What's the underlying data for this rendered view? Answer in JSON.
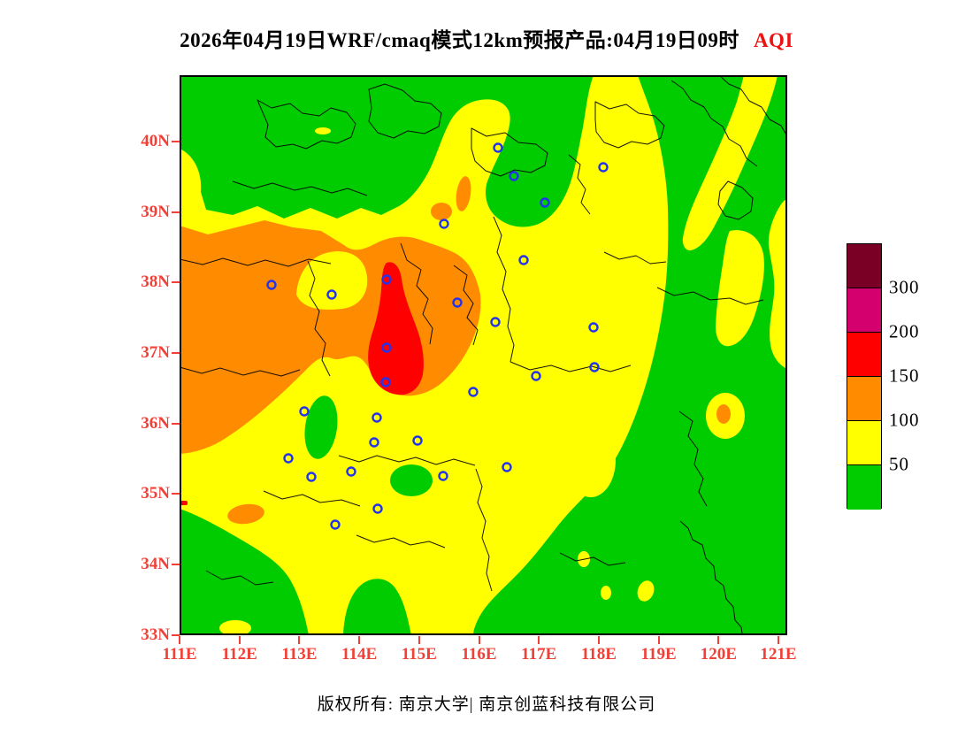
{
  "title": {
    "prefix": "2026年04月19日WRF/cmaq模式12km预报产品:04月19日09时",
    "variable": "AQI"
  },
  "footer": {
    "copyright": "版权所有: 南京大学| 南京创蓝科技有限公司"
  },
  "map": {
    "x_ticks": [
      "111E",
      "112E",
      "113E",
      "114E",
      "115E",
      "116E",
      "117E",
      "118E",
      "119E",
      "120E",
      "121E"
    ],
    "y_ticks": [
      "40N",
      "39N",
      "38N",
      "37N",
      "36N",
      "35N",
      "34N",
      "33N"
    ],
    "city_markers": [
      [
        360,
        82
      ],
      [
        378,
        114
      ],
      [
        479,
        104
      ],
      [
        413,
        144
      ],
      [
        299,
        168
      ],
      [
        104,
        237
      ],
      [
        172,
        248
      ],
      [
        234,
        231
      ],
      [
        314,
        257
      ],
      [
        389,
        209
      ],
      [
        234,
        308
      ],
      [
        357,
        279
      ],
      [
        468,
        285
      ],
      [
        233,
        347
      ],
      [
        332,
        358
      ],
      [
        141,
        380
      ],
      [
        223,
        387
      ],
      [
        220,
        415
      ],
      [
        269,
        413
      ],
      [
        298,
        453
      ],
      [
        123,
        433
      ],
      [
        149,
        454
      ],
      [
        194,
        448
      ],
      [
        224,
        490
      ],
      [
        176,
        508
      ],
      [
        370,
        443
      ],
      [
        403,
        340
      ],
      [
        469,
        330
      ]
    ]
  },
  "colorbar": {
    "labels": [
      "300",
      "200",
      "150",
      "100",
      "50"
    ],
    "segments": [
      {
        "name": "maroon",
        "color": "#7a0026",
        "range": ">300"
      },
      {
        "name": "magenta",
        "color": "#d4006e",
        "range": "200-300"
      },
      {
        "name": "red",
        "color": "#ff0000",
        "range": "150-200"
      },
      {
        "name": "orange",
        "color": "#ff8c00",
        "range": "100-150"
      },
      {
        "name": "yellow",
        "color": "#ffff00",
        "range": "50-100"
      },
      {
        "name": "green",
        "color": "#00cc00",
        "range": "<50"
      }
    ]
  },
  "colors": {
    "axis_label": "#f04138",
    "tick": "#f04138",
    "title_highlight": "#ee1111",
    "marker_blue": "#2233ee",
    "boundary_line": "#000000",
    "map_border": "#000000"
  },
  "chart_data": {
    "type": "heatmap",
    "title": "2026年04月19日WRF/cmaq模式12km预报产品:04月19日09时 AQI",
    "variable": "AQI",
    "model": "WRF/cmaq",
    "resolution": "12km",
    "run_date": "2026年04月19日",
    "valid_time": "04月19日09时",
    "x_axis": {
      "label": "longitude",
      "ticks": [
        "111E",
        "112E",
        "113E",
        "114E",
        "115E",
        "116E",
        "117E",
        "118E",
        "119E",
        "120E",
        "121E"
      ],
      "range": [
        111,
        121.2
      ]
    },
    "y_axis": {
      "label": "latitude",
      "ticks": [
        "33N",
        "34N",
        "35N",
        "36N",
        "37N",
        "38N",
        "39N",
        "40N"
      ],
      "range": [
        33,
        40.9
      ]
    },
    "grid": false,
    "legend": {
      "position": "right",
      "levels": [
        50,
        100,
        150,
        200,
        300
      ]
    },
    "aqi_bands": [
      {
        "range": "<50",
        "color": "#00cc00"
      },
      {
        "range": "50-100",
        "color": "#ffff00"
      },
      {
        "range": "100-150",
        "color": "#ff8c00"
      },
      {
        "range": "150-200",
        "color": "#ff0000"
      },
      {
        "range": "200-300",
        "color": "#d4006e"
      },
      {
        "range": ">300",
        "color": "#7a0026"
      }
    ],
    "regions": [
      {
        "aqi": "150-200",
        "color": "red",
        "location": "core around 114.3-115.1E, 36.5-37.6N (southern Hebei)"
      },
      {
        "aqi": "100-150",
        "color": "orange",
        "location": "large west-central mass 111-113.8E, 36-38.4N wrapping the red core; small spots near 115.6E/38.2N, 115.7E/37.5N, 118.9E/36.2N, 112.1E/34.8N"
      },
      {
        "aqi": "50-100",
        "color": "yellow",
        "location": "broad belt 33.5-38.3N from 111E to ~117.5E; diagonal bands in the northeast toward 121E/40.5N; scattered patches along the eastern edge and south"
      },
      {
        "aqi": "<50",
        "color": "green",
        "location": "north of ~38.5N, southeast quadrant and southern margin"
      }
    ],
    "station_marker_count": 28
  }
}
